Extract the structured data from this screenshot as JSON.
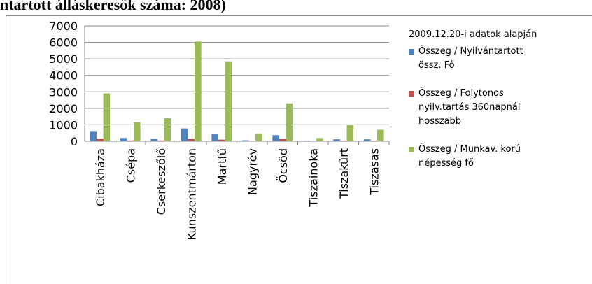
{
  "chart_data": {
    "type": "bar",
    "title": "ntartott álláskeresők száma: 2008)",
    "legend_title": "2009.12.20-i adatok alapján",
    "categories": [
      "Cibakháza",
      "Csépa",
      "Cserkeszőlő",
      "Kunszentmárton",
      "Martfű",
      "Nagyrév",
      "Öcsöd",
      "Tiszainoka",
      "Tiszakürt",
      "Tiszasas"
    ],
    "series": [
      {
        "name": "Összeg / Nyilvántartott össz. Fő",
        "color": "#4f81bd",
        "values": [
          620,
          200,
          150,
          780,
          420,
          60,
          370,
          40,
          120,
          120
        ]
      },
      {
        "name": "Összeg / Folytonos nyilv.tartás 360napnál hosszabb",
        "color": "#c0504d",
        "values": [
          150,
          50,
          50,
          150,
          100,
          30,
          150,
          20,
          40,
          40
        ]
      },
      {
        "name": "Összeg / Munkav. korú népesség fő",
        "color": "#9bbb59",
        "values": [
          2900,
          1150,
          1400,
          6050,
          4850,
          450,
          2300,
          200,
          980,
          700
        ]
      }
    ],
    "ylim": [
      0,
      7000
    ],
    "yticks": [
      0,
      1000,
      2000,
      3000,
      4000,
      5000,
      6000,
      7000
    ],
    "grid": true
  }
}
